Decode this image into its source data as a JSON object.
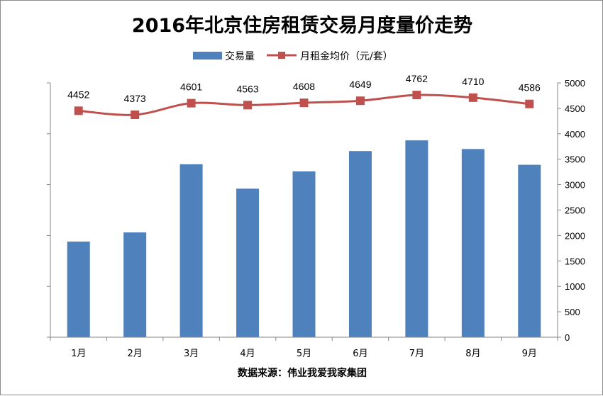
{
  "chart_data": {
    "type": "bar",
    "title": "2016年北京住房租赁交易月度量价走势",
    "categories": [
      "1月",
      "2月",
      "3月",
      "4月",
      "5月",
      "6月",
      "7月",
      "8月",
      "9月"
    ],
    "series": [
      {
        "name": "交易量",
        "type": "bar",
        "axis": "left",
        "color": "#4f81bd",
        "values": [
          1880,
          2060,
          3400,
          2920,
          3260,
          3660,
          3870,
          3700,
          3390
        ]
      },
      {
        "name": "月租金均价（元/套）",
        "type": "line",
        "axis": "right",
        "color": "#c0504d",
        "values": [
          4452,
          4373,
          4601,
          4563,
          4608,
          4649,
          4762,
          4710,
          4586
        ],
        "data_labels": [
          "4452",
          "4373",
          "4601",
          "4563",
          "4608",
          "4649",
          "4762",
          "4710",
          "4586"
        ]
      }
    ],
    "left_axis": {
      "ylim": [
        0,
        5000
      ],
      "ticks": [
        0,
        1000,
        2000,
        3000,
        4000,
        5000
      ],
      "tick_labels_shown": false
    },
    "right_axis": {
      "ylim": [
        0,
        5000
      ],
      "ticks": [
        0,
        500,
        1000,
        1500,
        2000,
        2500,
        3000,
        3500,
        4000,
        4500,
        5000
      ],
      "tick_labels": [
        "0",
        "500",
        "1000",
        "1500",
        "2000",
        "2500",
        "3000",
        "3500",
        "4000",
        "4500",
        "5000"
      ]
    },
    "grid": false,
    "legend": "top-center",
    "source": "数据来源：伟业我爱我家集团"
  }
}
